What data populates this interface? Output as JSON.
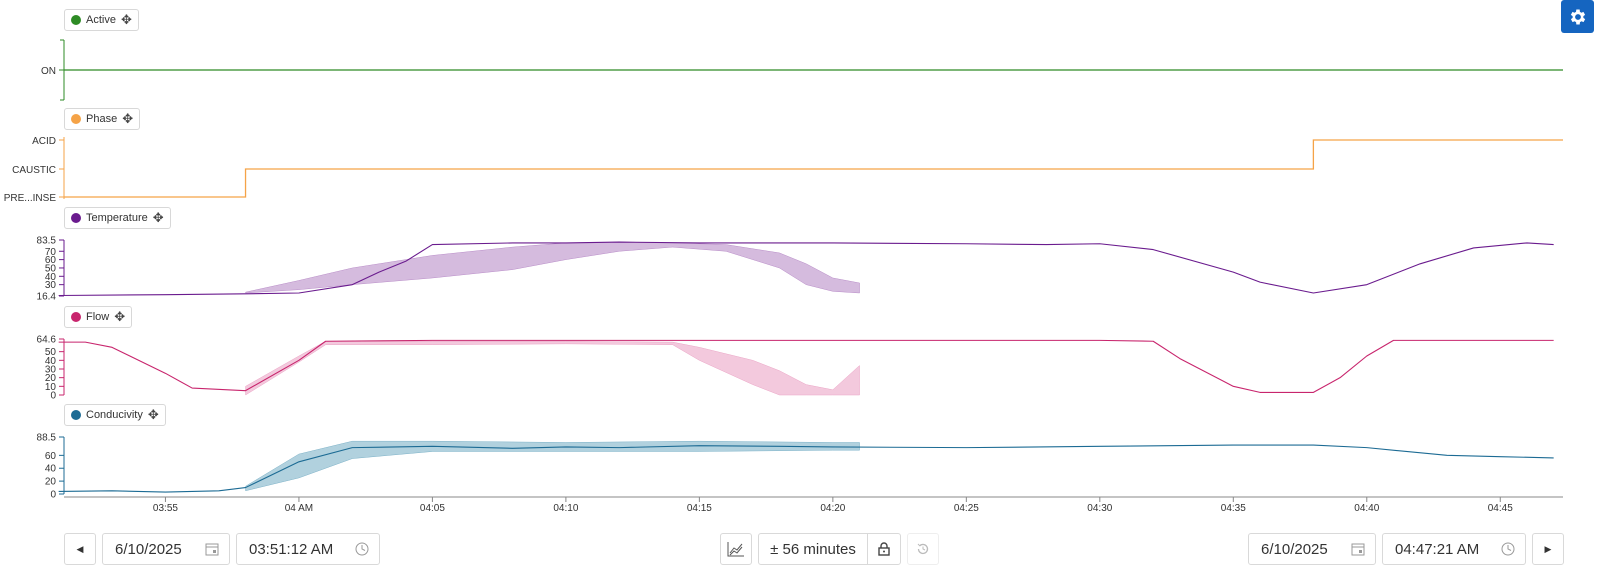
{
  "chart_data": {
    "type": "line",
    "x_axis": {
      "ticks": [
        "03:55",
        "04 AM",
        "04:05",
        "04:10",
        "04:15",
        "04:20",
        "04:25",
        "04:30",
        "04:35",
        "04:40",
        "04:45"
      ],
      "start": "03:51:12",
      "end": "04:47:21"
    },
    "panels": [
      {
        "name": "Active",
        "color": "#2e8b25",
        "type": "step",
        "y_labels": [
          "ON"
        ],
        "x": [
          "03:51:12",
          "04:47:21"
        ],
        "values": [
          "ON",
          "ON"
        ]
      },
      {
        "name": "Phase",
        "color": "#f5a347",
        "type": "step",
        "y_labels": [
          "ACID",
          "CAUSTIC",
          "PRE...INSE"
        ],
        "x": [
          "03:51:12",
          "03:58:00",
          "04:38:00",
          "04:47:21"
        ],
        "values": [
          "PRE...INSE",
          "CAUSTIC",
          "ACID",
          "ACID"
        ]
      },
      {
        "name": "Temperature",
        "color": "#6a1b8e",
        "band_color": "#b98dc8",
        "y_ticks": [
          "83.5",
          "70",
          "60",
          "50",
          "40",
          "30",
          "16.4"
        ],
        "ylim": [
          16.4,
          83.5
        ],
        "x": [
          "03:51",
          "03:55",
          "03:58",
          "04:00",
          "04:02",
          "04:03",
          "04:04",
          "04:05",
          "04:08",
          "04:10",
          "04:12",
          "04:15",
          "04:20",
          "04:25",
          "04:28",
          "04:30",
          "04:32",
          "04:35",
          "04:36",
          "04:38",
          "04:40",
          "04:42",
          "04:44",
          "04:46",
          "04:47"
        ],
        "values": [
          17,
          18,
          19,
          20,
          30,
          45,
          58,
          78,
          80,
          80,
          81,
          80,
          80,
          79,
          78,
          79,
          72,
          45,
          33,
          20,
          30,
          55,
          74,
          80,
          78
        ],
        "band": {
          "x": [
            "03:58",
            "04:00",
            "04:02",
            "04:05",
            "04:08",
            "04:10",
            "04:12",
            "04:14",
            "04:16",
            "04:18",
            "04:19",
            "04:20",
            "04:21"
          ],
          "upper": [
            21,
            35,
            50,
            65,
            75,
            80,
            81,
            80,
            78,
            68,
            55,
            38,
            32
          ],
          "lower": [
            20,
            24,
            30,
            38,
            48,
            60,
            70,
            75,
            70,
            50,
            30,
            22,
            20
          ]
        }
      },
      {
        "name": "Flow",
        "color": "#c8256d",
        "band_color": "#eba5c6",
        "y_ticks": [
          "64.6",
          "50",
          "40",
          "30",
          "20",
          "10",
          "0"
        ],
        "ylim": [
          0,
          64.6
        ],
        "x": [
          "03:51",
          "03:52",
          "03:53",
          "03:55",
          "03:56",
          "03:58",
          "04:00",
          "04:01",
          "04:05",
          "04:10",
          "04:15",
          "04:20",
          "04:25",
          "04:30",
          "04:32",
          "04:33",
          "04:35",
          "04:36",
          "04:38",
          "04:39",
          "04:40",
          "04:41",
          "04:45",
          "04:47"
        ],
        "values": [
          61,
          61,
          55,
          25,
          8,
          5,
          40,
          62,
          63,
          63,
          63,
          63,
          63,
          63,
          62,
          42,
          10,
          3,
          3,
          20,
          45,
          63,
          63,
          63
        ],
        "band": {
          "x": [
            "03:58",
            "04:00",
            "04:01",
            "04:05",
            "04:10",
            "04:14",
            "04:15",
            "04:17",
            "04:18",
            "04:19",
            "04:20",
            "04:21"
          ],
          "upper": [
            10,
            45,
            62,
            62,
            62,
            61,
            55,
            40,
            28,
            12,
            6,
            34
          ],
          "lower": [
            0,
            38,
            58,
            58,
            59,
            58,
            40,
            12,
            0,
            0,
            0,
            0
          ]
        }
      },
      {
        "name": "Conducivity",
        "color": "#1c6b94",
        "band_color": "#7db2c8",
        "y_ticks": [
          "88.5",
          "60",
          "40",
          "20",
          "0"
        ],
        "ylim": [
          0,
          88.5
        ],
        "x": [
          "03:51",
          "03:53",
          "03:55",
          "03:57",
          "03:58",
          "04:00",
          "04:02",
          "04:05",
          "04:08",
          "04:10",
          "04:12",
          "04:15",
          "04:18",
          "04:20",
          "04:25",
          "04:30",
          "04:35",
          "04:38",
          "04:40",
          "04:43",
          "04:45",
          "04:47"
        ],
        "values": [
          4,
          5,
          3,
          5,
          10,
          50,
          72,
          74,
          71,
          73,
          72,
          75,
          74,
          73,
          72,
          74,
          76,
          76,
          72,
          60,
          58,
          56
        ],
        "band": {
          "x": [
            "03:58",
            "04:00",
            "04:02",
            "04:05",
            "04:10",
            "04:15",
            "04:20",
            "04:21"
          ],
          "upper": [
            12,
            62,
            82,
            82,
            80,
            82,
            80,
            80
          ],
          "lower": [
            5,
            25,
            55,
            66,
            66,
            66,
            68,
            68
          ]
        }
      }
    ]
  },
  "controls": {
    "start_date": "6/10/2025",
    "start_time": "03:51:12 AM",
    "window": "± 56 minutes",
    "end_date": "6/10/2025",
    "end_time": "04:47:21 AM"
  },
  "icons": [
    "gear-icon",
    "move-icon",
    "calendar-icon",
    "clock-icon",
    "chart-icon",
    "lock-icon",
    "history-icon",
    "chevron-left-icon",
    "chevron-right-icon"
  ]
}
